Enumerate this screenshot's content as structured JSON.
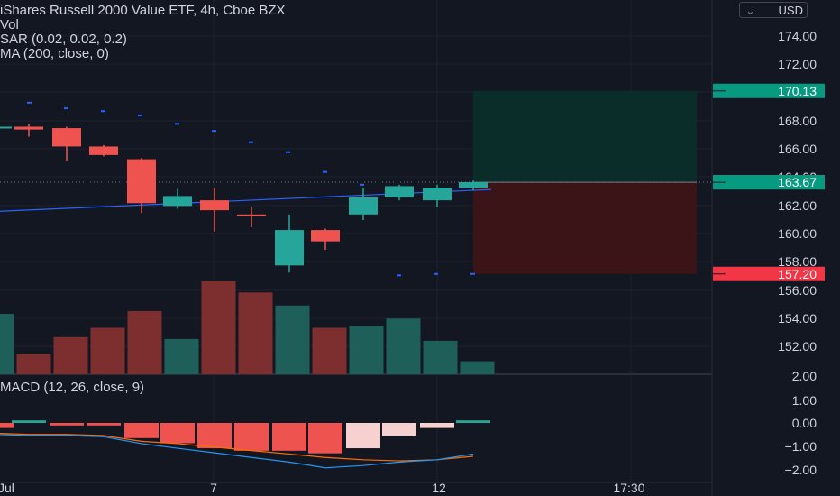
{
  "legend": {
    "title": "iShares Russell 2000 Value ETF, 4h, Cboe BZX",
    "vol": "Vol",
    "sar": "SAR (0.02, 0.02, 0.2)",
    "ma": "MA (200, close, 0)",
    "macd": "MACD (12, 26, close, 9)"
  },
  "currency_button": "USD",
  "colors": {
    "background": "#131722",
    "up": "#26a69a",
    "down": "#ef5350",
    "ma": "#2962ff",
    "macd_line": "#2196f3",
    "signal_line": "#ff6d00",
    "profit_zone": "#0b2d2a",
    "loss_zone": "#3b1417"
  },
  "chart_data": [
    {
      "type": "candlestick",
      "title": "iShares Russell 2000 Value ETF, 4h, Cboe BZX",
      "y_tick_labels": [
        "174.00",
        "172.00",
        "170.00",
        "168.00",
        "166.00",
        "164.00",
        "162.00",
        "160.00",
        "158.00",
        "156.00",
        "154.00",
        "152.00"
      ],
      "ylim": [
        150.6,
        175.6
      ],
      "x_tick_labels": [
        "Jul",
        "7",
        "12",
        "17:30"
      ],
      "candles": [
        {
          "open": 167.6,
          "high": 167.9,
          "low": 167.2,
          "close": 167.6
        },
        {
          "open": 167.6,
          "high": 167.8,
          "low": 166.9,
          "close": 167.4
        },
        {
          "open": 167.5,
          "high": 167.6,
          "low": 165.2,
          "close": 166.2
        },
        {
          "open": 166.2,
          "high": 166.3,
          "low": 165.5,
          "close": 165.6
        },
        {
          "open": 165.3,
          "high": 165.4,
          "low": 161.5,
          "close": 162.2
        },
        {
          "open": 162.0,
          "high": 163.2,
          "low": 161.8,
          "close": 162.7
        },
        {
          "open": 162.4,
          "high": 163.3,
          "low": 160.2,
          "close": 161.7
        },
        {
          "open": 161.4,
          "high": 161.9,
          "low": 160.5,
          "close": 161.3
        },
        {
          "open": 157.8,
          "high": 161.4,
          "low": 157.3,
          "close": 160.3
        },
        {
          "open": 160.3,
          "high": 160.4,
          "low": 158.9,
          "close": 159.5
        },
        {
          "open": 161.4,
          "high": 163.3,
          "low": 161.0,
          "close": 162.6
        },
        {
          "open": 162.6,
          "high": 163.5,
          "low": 162.4,
          "close": 163.4
        },
        {
          "open": 162.4,
          "high": 163.5,
          "low": 161.9,
          "close": 163.3
        },
        {
          "open": 163.3,
          "high": 163.8,
          "low": 163.1,
          "close": 163.68
        }
      ],
      "sar": [
        169.3,
        168.9,
        168.7,
        168.4,
        167.8,
        167.3,
        166.5,
        165.8,
        164.4,
        163.5,
        157.1,
        157.2,
        157.2
      ],
      "ma_line": [
        [
          162.9,
          163.0
        ],
        [
          163.67,
          163.4
        ]
      ],
      "price_labels": [
        {
          "text": "170.13",
          "value": 170.13,
          "kind": "target"
        },
        {
          "text": "163.68",
          "value": 163.68,
          "kind": "last"
        },
        {
          "text": "163.67",
          "value": 163.67,
          "kind": "entry"
        },
        {
          "text": "157.20",
          "value": 157.2,
          "kind": "stop"
        }
      ],
      "position": {
        "entry": 163.67,
        "target": 170.13,
        "stop": 157.2
      }
    },
    {
      "type": "bar",
      "series": [
        {
          "values": [
            0.65,
            0.22,
            0.4,
            0.5,
            0.68,
            0.38,
            1.0,
            0.88,
            0.74,
            0.5,
            0.52,
            0.6,
            0.36,
            0.14
          ]
        }
      ],
      "directions": [
        "up",
        "down",
        "down",
        "down",
        "down",
        "up",
        "down",
        "down",
        "up",
        "down",
        "up",
        "up",
        "up",
        "up"
      ]
    },
    {
      "type": "line",
      "title": "MACD (12, 26, close, 9)",
      "y_tick_labels": [
        "2.00",
        "1.00",
        "0.00",
        "−1.00",
        "−2.00"
      ],
      "ylim": [
        -2.4,
        2.0
      ],
      "histogram": [
        -0.1,
        0.05,
        -0.05,
        -0.05,
        -0.3,
        -0.4,
        -0.5,
        -0.55,
        -0.55,
        -0.6,
        -0.5,
        -0.25,
        -0.1,
        0.05
      ],
      "macd": [
        -0.5,
        -0.55,
        -0.55,
        -0.6,
        -0.9,
        -1.1,
        -1.3,
        -1.5,
        -1.7,
        -1.95,
        -1.85,
        -1.7,
        -1.6,
        -1.35
      ],
      "signal": [
        -0.45,
        -0.5,
        -0.5,
        -0.55,
        -0.8,
        -0.9,
        -1.05,
        -1.2,
        -1.35,
        -1.5,
        -1.6,
        -1.65,
        -1.6,
        -1.45
      ]
    }
  ]
}
